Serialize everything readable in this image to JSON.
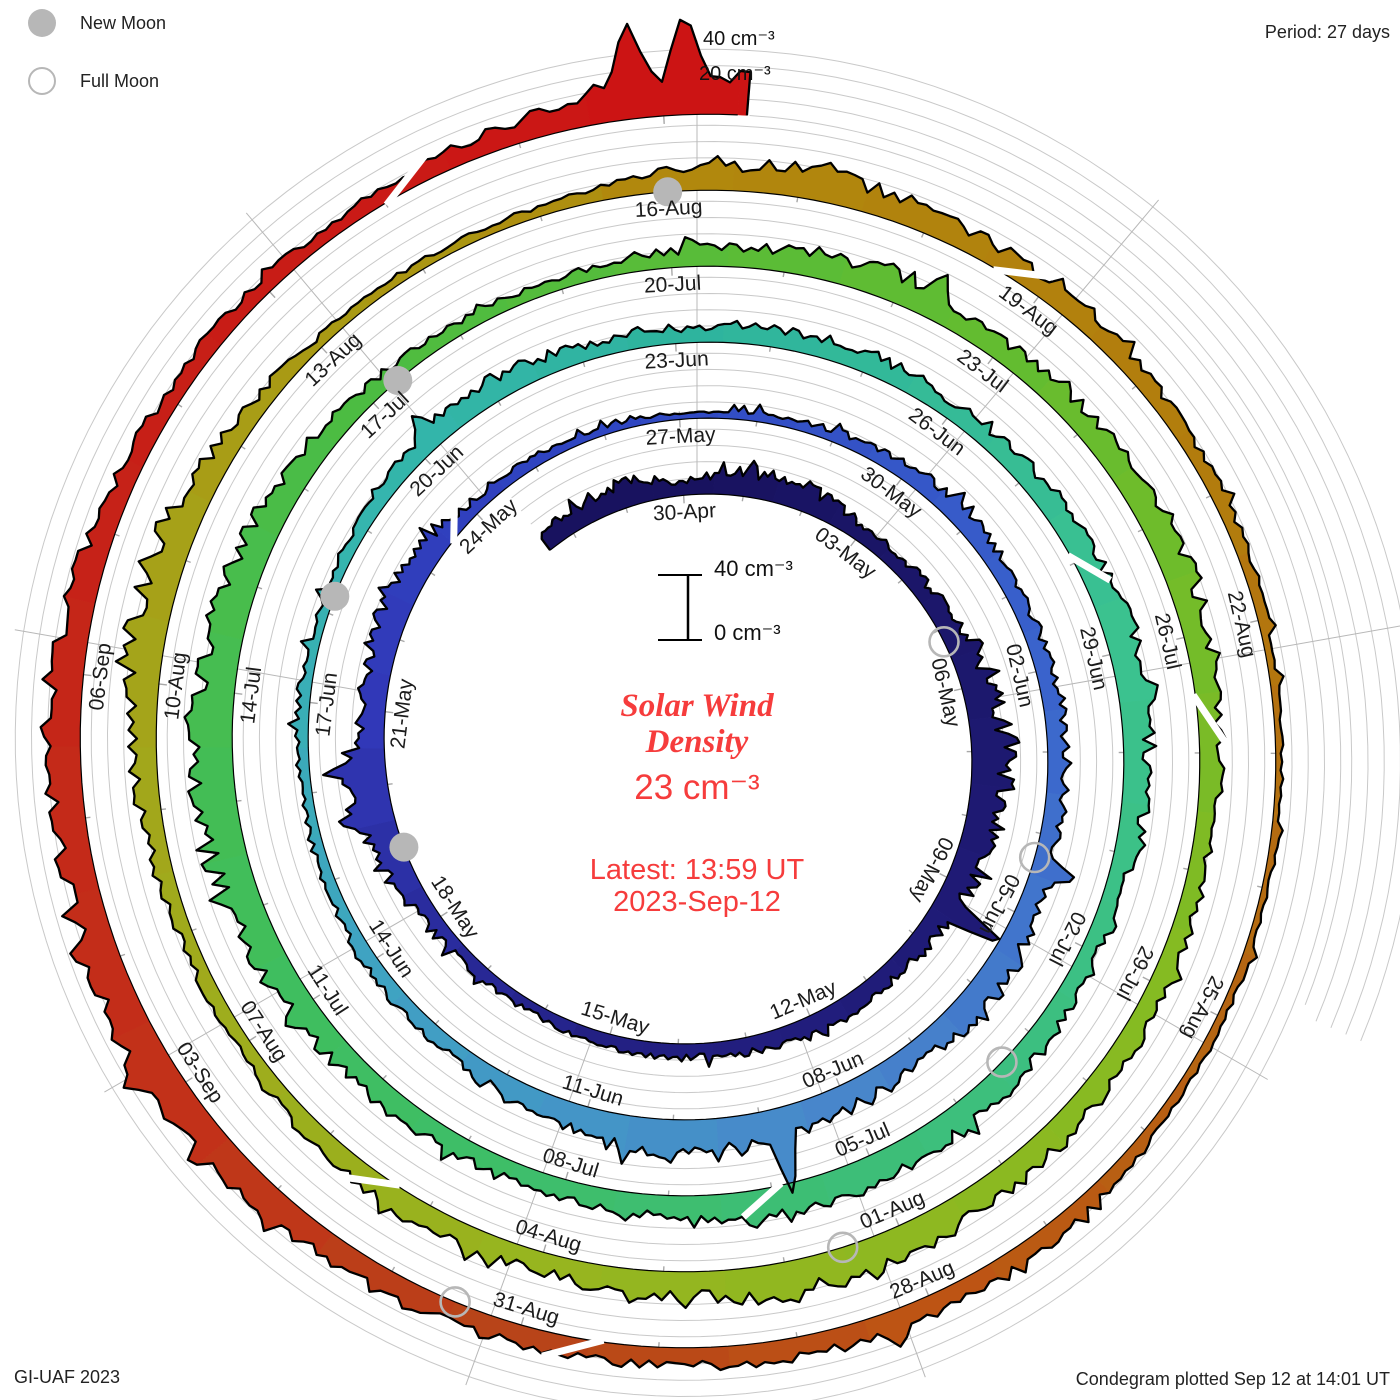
{
  "legend": {
    "new_moon": "New Moon",
    "full_moon": "Full Moon"
  },
  "header": {
    "period": "Period: 27 days"
  },
  "footer": {
    "credit": "GI-UAF 2023",
    "plotted": "Condegram plotted Sep 12 at 14:01 UT"
  },
  "center": {
    "title_line1": "Solar Wind",
    "title_line2": "Density",
    "value": "23 cm⁻³",
    "latest_line1": "Latest: 13:59 UT",
    "latest_line2": "2023-Sep-12"
  },
  "scale": {
    "inner_top": "40 cm⁻³",
    "inner_bottom": "0 cm⁻³",
    "outer_top": "40 cm⁻³",
    "outer_bottom": "20 cm⁻³"
  },
  "chart_data": {
    "type": "area",
    "subtype": "spiral_condegram",
    "title": "Solar Wind Density",
    "units": "cm⁻³",
    "period_days": 27,
    "value_axis": {
      "min": 0,
      "max": 40,
      "grid_step": 10
    },
    "latest": {
      "value": 23,
      "time": "13:59 UT",
      "date": "2023-Sep-12"
    },
    "data_start_day": -2.5,
    "data_end_day": 135.58,
    "daily_values_start_day": -3,
    "daily_values": [
      8,
      13,
      16,
      8,
      16,
      15,
      9,
      10,
      12,
      18,
      22,
      20,
      16,
      12,
      10,
      12,
      9,
      8,
      8,
      6,
      7,
      9,
      18,
      26,
      14,
      17,
      16,
      8,
      6,
      5,
      4,
      5,
      7,
      10,
      12,
      9,
      10,
      12,
      11,
      14,
      18,
      14,
      16,
      20,
      22,
      16,
      10,
      9,
      8,
      7,
      6,
      7,
      6,
      8,
      12,
      14,
      10,
      9,
      11,
      13,
      10,
      12,
      15,
      18,
      16,
      12,
      11,
      13,
      16,
      18,
      20,
      14,
      12,
      11,
      13,
      16,
      20,
      24,
      22,
      20,
      16,
      10,
      8,
      7,
      10,
      14,
      18,
      12,
      14,
      18,
      16,
      12,
      10,
      12,
      14,
      16,
      18,
      20,
      14,
      12,
      14,
      11,
      9,
      8,
      12,
      18,
      22,
      12,
      6,
      5,
      6,
      12,
      18,
      14,
      12,
      10,
      8,
      6,
      4,
      4,
      5,
      7,
      10,
      13,
      12,
      11,
      12,
      14,
      18,
      24,
      20,
      18,
      20,
      14,
      10,
      9,
      8,
      14,
      23
    ],
    "spikes": [
      [
        6.8,
        30
      ],
      [
        9.4,
        52
      ],
      [
        19.6,
        38
      ],
      [
        20.2,
        41
      ],
      [
        22.5,
        24
      ],
      [
        35.4,
        30
      ],
      [
        39.8,
        56
      ],
      [
        41.5,
        30
      ],
      [
        51.2,
        26
      ],
      [
        60.4,
        28
      ],
      [
        74.6,
        30
      ],
      [
        83.3,
        31
      ],
      [
        93.3,
        27
      ],
      [
        102.4,
        30
      ],
      [
        109.2,
        26
      ],
      [
        120.3,
        24
      ],
      [
        126.2,
        36
      ],
      [
        127.1,
        32
      ],
      [
        134.8,
        62
      ],
      [
        135.15,
        66
      ]
    ],
    "gaps": [
      23.5,
      58.9,
      66.9,
      87.5,
      97.3,
      110.6,
      122.4,
      133.0
    ],
    "moons": {
      "new_days": [
        19.1,
        49.2,
        78.3,
        108.0
      ],
      "full_days": [
        5.2,
        35.3,
        64.4,
        93.5,
        123.5
      ]
    },
    "date_labels": [
      {
        "d": 0,
        "label": "30-Apr"
      },
      {
        "d": 3,
        "label": "03-May"
      },
      {
        "d": 6,
        "label": "06-May"
      },
      {
        "d": 9,
        "label": "09-May"
      },
      {
        "d": 12,
        "label": "12-May"
      },
      {
        "d": 15,
        "label": "15-May"
      },
      {
        "d": 18,
        "label": "18-May"
      },
      {
        "d": 21,
        "label": "21-May"
      },
      {
        "d": 24,
        "label": "24-May"
      },
      {
        "d": 27,
        "label": "27-May"
      },
      {
        "d": 30,
        "label": "30-May"
      },
      {
        "d": 33,
        "label": "02-Jun"
      },
      {
        "d": 36,
        "label": "05-Jun"
      },
      {
        "d": 39,
        "label": "08-Jun"
      },
      {
        "d": 42,
        "label": "11-Jun"
      },
      {
        "d": 45,
        "label": "14-Jun"
      },
      {
        "d": 48,
        "label": "17-Jun"
      },
      {
        "d": 51,
        "label": "20-Jun"
      },
      {
        "d": 54,
        "label": "23-Jun"
      },
      {
        "d": 57,
        "label": "26-Jun"
      },
      {
        "d": 60,
        "label": "29-Jun"
      },
      {
        "d": 63,
        "label": "02-Jul"
      },
      {
        "d": 66,
        "label": "05-Jul"
      },
      {
        "d": 69,
        "label": "08-Jul"
      },
      {
        "d": 72,
        "label": "11-Jul"
      },
      {
        "d": 75,
        "label": "14-Jul"
      },
      {
        "d": 78,
        "label": "17-Jul"
      },
      {
        "d": 81,
        "label": "20-Jul"
      },
      {
        "d": 84,
        "label": "23-Jul"
      },
      {
        "d": 87,
        "label": "26-Jul"
      },
      {
        "d": 90,
        "label": "29-Jul"
      },
      {
        "d": 93,
        "label": "01-Aug"
      },
      {
        "d": 96,
        "label": "04-Aug"
      },
      {
        "d": 99,
        "label": "07-Aug"
      },
      {
        "d": 102,
        "label": "10-Aug"
      },
      {
        "d": 105,
        "label": "13-Aug"
      },
      {
        "d": 108,
        "label": "16-Aug"
      },
      {
        "d": 111,
        "label": "19-Aug"
      },
      {
        "d": 114,
        "label": "22-Aug"
      },
      {
        "d": 117,
        "label": "25-Aug"
      },
      {
        "d": 120,
        "label": "28-Aug"
      },
      {
        "d": 123,
        "label": "31-Aug"
      },
      {
        "d": 126,
        "label": "03-Sep"
      },
      {
        "d": 129,
        "label": "06-Sep"
      }
    ],
    "color_stops": [
      [
        -3,
        "#18125f"
      ],
      [
        0,
        "#18125f"
      ],
      [
        15,
        "#232083"
      ],
      [
        21,
        "#3138b8"
      ],
      [
        26,
        "#2f46c2"
      ],
      [
        33,
        "#3a63cc"
      ],
      [
        39,
        "#4886cb"
      ],
      [
        45,
        "#3fa3c2"
      ],
      [
        50,
        "#35b5ae"
      ],
      [
        54,
        "#2eb49e"
      ],
      [
        60,
        "#3bc28f"
      ],
      [
        66,
        "#3dbe78"
      ],
      [
        72,
        "#3fbe5f"
      ],
      [
        78,
        "#4cbc42"
      ],
      [
        84,
        "#63bc30"
      ],
      [
        90,
        "#85bb22"
      ],
      [
        96,
        "#97b51f"
      ],
      [
        102,
        "#a4a41a"
      ],
      [
        106,
        "#ab9612"
      ],
      [
        108,
        "#b1880d"
      ],
      [
        113,
        "#b27c0d"
      ],
      [
        117,
        "#b56512"
      ],
      [
        120,
        "#bd5414"
      ],
      [
        123,
        "#b84419"
      ],
      [
        126,
        "#c23119"
      ],
      [
        130,
        "#c62218"
      ],
      [
        135,
        "#cc1414"
      ]
    ],
    "status_colors": {
      "moon_gray": "#b7b7b7",
      "grid_gray": "#c9c9c9",
      "spoke_gray": "#b8b8b8",
      "accent_red": "#f63c3c"
    }
  }
}
